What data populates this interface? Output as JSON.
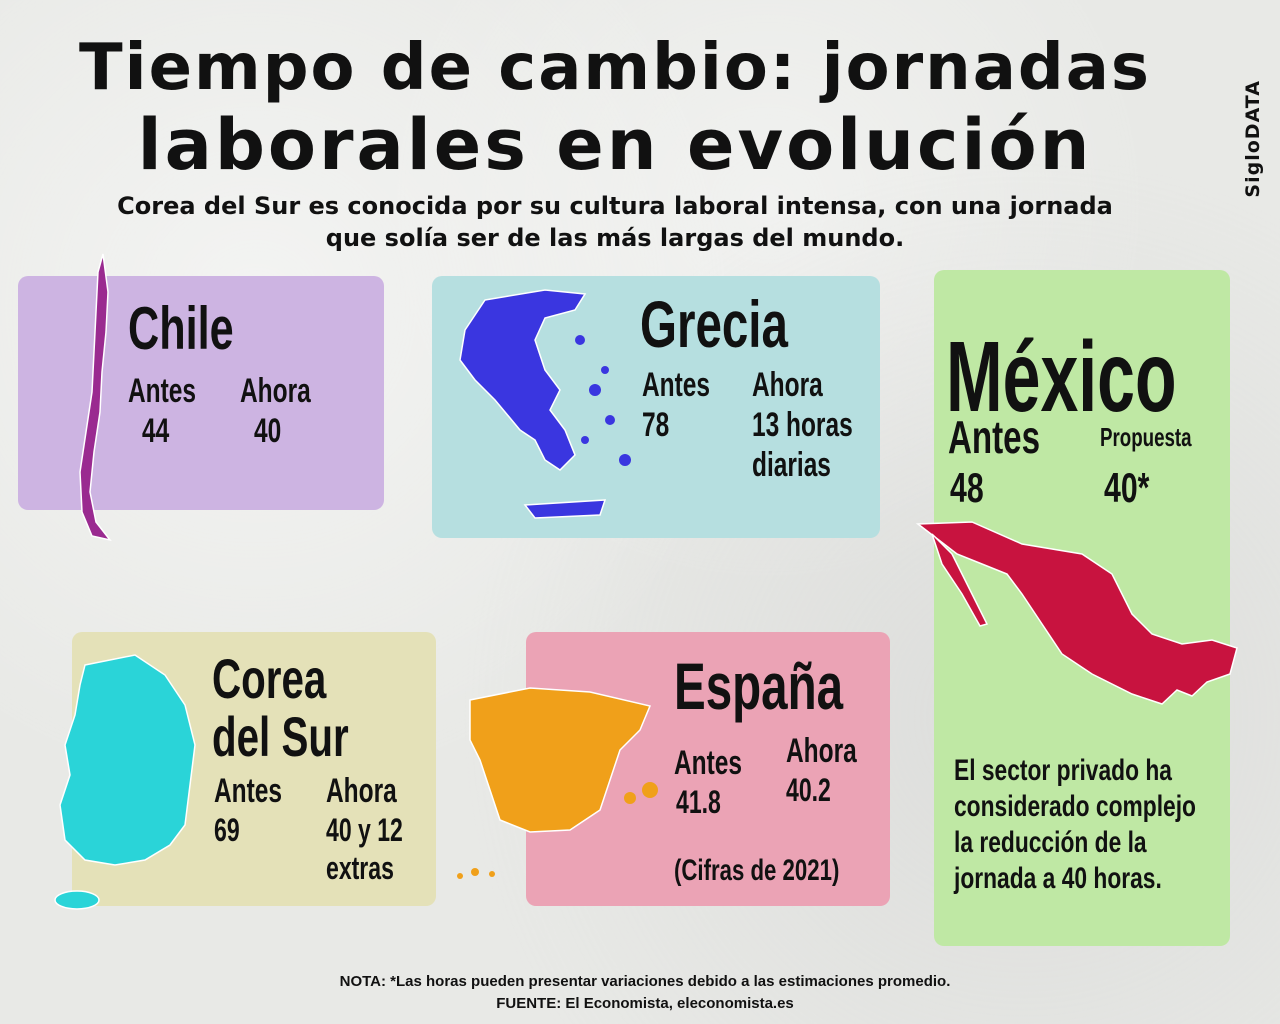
{
  "header": {
    "title_line1": "Tiempo de cambio: jornadas",
    "title_line2": "laborales en evolución",
    "subtitle": "Corea del Sur es conocida por su cultura laboral intensa, con una jornada que solía ser de las más largas del mundo.",
    "brand": "SigloDATA"
  },
  "countries": {
    "chile": {
      "name": "Chile",
      "before_label": "Antes",
      "before_value": "44",
      "now_label": "Ahora",
      "now_value": "40",
      "color": "#cdb4e2"
    },
    "grecia": {
      "name": "Grecia",
      "before_label": "Antes",
      "before_value": "78",
      "now_label": "Ahora",
      "now_value_line1": "13 horas",
      "now_value_line2": "diarias",
      "color": "#b6dfe0"
    },
    "mexico": {
      "name": "México",
      "before_label": "Antes",
      "before_value": "48",
      "now_label": "Propuesta",
      "now_value": "40*",
      "note_line1": "El sector privado ha",
      "note_line2": "considerado complejo",
      "note_line3": "la reducción de la",
      "note_line4": "jornada a 40 horas.",
      "color": "#bfe8a4"
    },
    "corea": {
      "name_line1": "Corea",
      "name_line2": "del Sur",
      "before_label": "Antes",
      "before_value": "69",
      "now_label": "Ahora",
      "now_value_line1": "40 y 12",
      "now_value_line2": "extras",
      "color": "#e4e1b8"
    },
    "espana": {
      "name": "España",
      "before_label": "Antes",
      "before_value": "41.8",
      "now_label": "Ahora",
      "now_value": "40.2",
      "year_note": "(Cifras de 2021)",
      "color": "#eba3b5"
    }
  },
  "map_colors": {
    "chile": "#9a2a90",
    "grecia": "#3a36e0",
    "mexico": "#c8133f",
    "corea": "#2ad4d8",
    "espana": "#f0a01a"
  },
  "footer": {
    "note": "NOTA: *Las horas pueden presentar variaciones debido a las estimaciones promedio.",
    "source": "FUENTE: El Economista, eleconomista.es"
  }
}
